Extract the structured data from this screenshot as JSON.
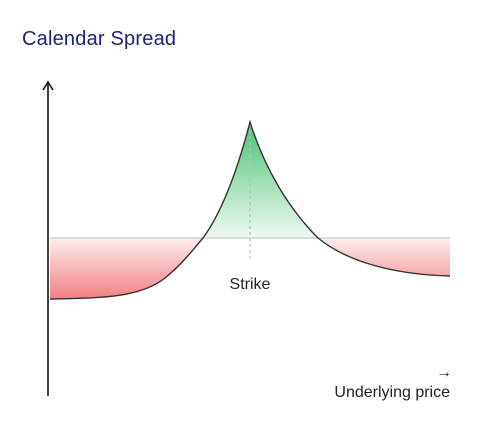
{
  "title": "Calendar Spread",
  "strike_label": "Strike",
  "x_axis_label": "Underlying price",
  "x_axis_arrow": "→",
  "colors": {
    "title": "#1a237e",
    "profit": "#4caf50",
    "loss": "#ef5350",
    "curve": "#333333",
    "baseline": "#c8c8c8"
  }
}
